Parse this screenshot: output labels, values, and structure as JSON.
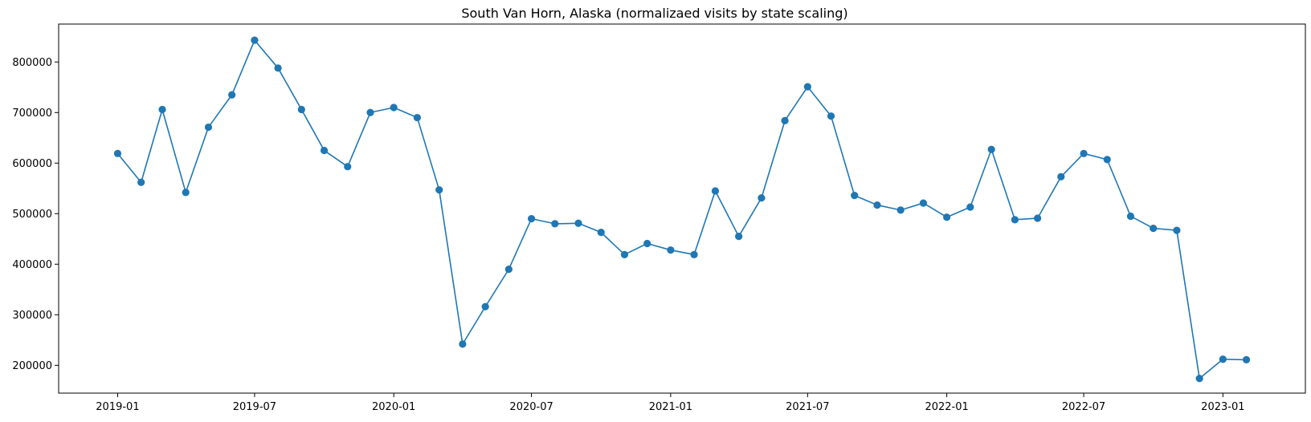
{
  "chart_data": {
    "type": "line",
    "title": "South Van Horn, Alaska (normalizaed visits by state scaling)",
    "xlabel": "",
    "ylabel": "",
    "x_ticks": [
      "2019-01",
      "2019-07",
      "2020-01",
      "2020-07",
      "2021-01",
      "2021-07",
      "2022-01",
      "2022-07",
      "2023-01"
    ],
    "y_ticks": [
      200000,
      300000,
      400000,
      500000,
      600000,
      700000,
      800000
    ],
    "xlim": [
      "2018-10-15",
      "2023-04-20"
    ],
    "ylim": [
      145000,
      875000
    ],
    "marker": "circle",
    "grid": false,
    "series": [
      {
        "color": "#1f77b4",
        "x": [
          "2019-01-01",
          "2019-02-01",
          "2019-03-01",
          "2019-04-01",
          "2019-05-01",
          "2019-06-01",
          "2019-07-01",
          "2019-08-01",
          "2019-09-01",
          "2019-10-01",
          "2019-11-01",
          "2019-12-01",
          "2020-01-01",
          "2020-02-01",
          "2020-03-01",
          "2020-04-01",
          "2020-05-01",
          "2020-06-01",
          "2020-07-01",
          "2020-08-01",
          "2020-09-01",
          "2020-10-01",
          "2020-11-01",
          "2020-12-01",
          "2021-01-01",
          "2021-02-01",
          "2021-03-01",
          "2021-04-01",
          "2021-05-01",
          "2021-06-01",
          "2021-07-01",
          "2021-08-01",
          "2021-09-01",
          "2021-10-01",
          "2021-11-01",
          "2021-12-01",
          "2022-01-01",
          "2022-02-01",
          "2022-03-01",
          "2022-04-01",
          "2022-05-01",
          "2022-06-01",
          "2022-07-01",
          "2022-08-01",
          "2022-09-01",
          "2022-10-01",
          "2022-11-01",
          "2022-12-01",
          "2023-01-01",
          "2023-02-01"
        ],
        "values": [
          619000,
          562000,
          706000,
          542000,
          671000,
          735000,
          843000,
          788000,
          706000,
          625000,
          593000,
          700000,
          710000,
          690000,
          547000,
          242000,
          316000,
          390000,
          490000,
          480000,
          481000,
          463000,
          419000,
          441000,
          428000,
          419000,
          545000,
          455000,
          531000,
          684000,
          751000,
          693000,
          536000,
          517000,
          507000,
          521000,
          493000,
          513000,
          627000,
          488000,
          491000,
          573000,
          619000,
          607000,
          495000,
          471000,
          467000,
          174000,
          212000,
          211000
        ]
      }
    ]
  }
}
